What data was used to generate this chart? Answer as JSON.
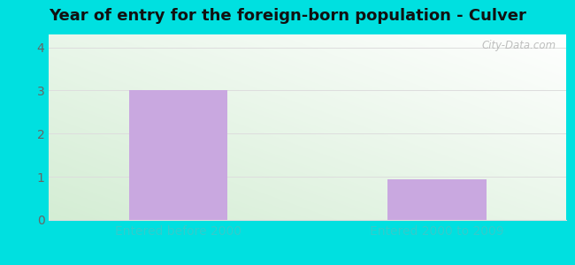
{
  "title": "Year of entry for the foreign-born population - Culver",
  "categories": [
    "Entered before 2000",
    "Entered 2000 to 2009"
  ],
  "values": [
    3,
    0.95
  ],
  "bar_color": "#c9a8e0",
  "bar_width": 0.38,
  "ylim": [
    0,
    4.3
  ],
  "yticks": [
    0,
    1,
    2,
    3,
    4
  ],
  "background_outer": "#00e0e0",
  "grid_color": "#dddddd",
  "tick_label_color": "#33cccc",
  "ytick_label_color": "#666666",
  "title_fontsize": 13,
  "tick_fontsize": 10,
  "watermark": "City-Data.com"
}
